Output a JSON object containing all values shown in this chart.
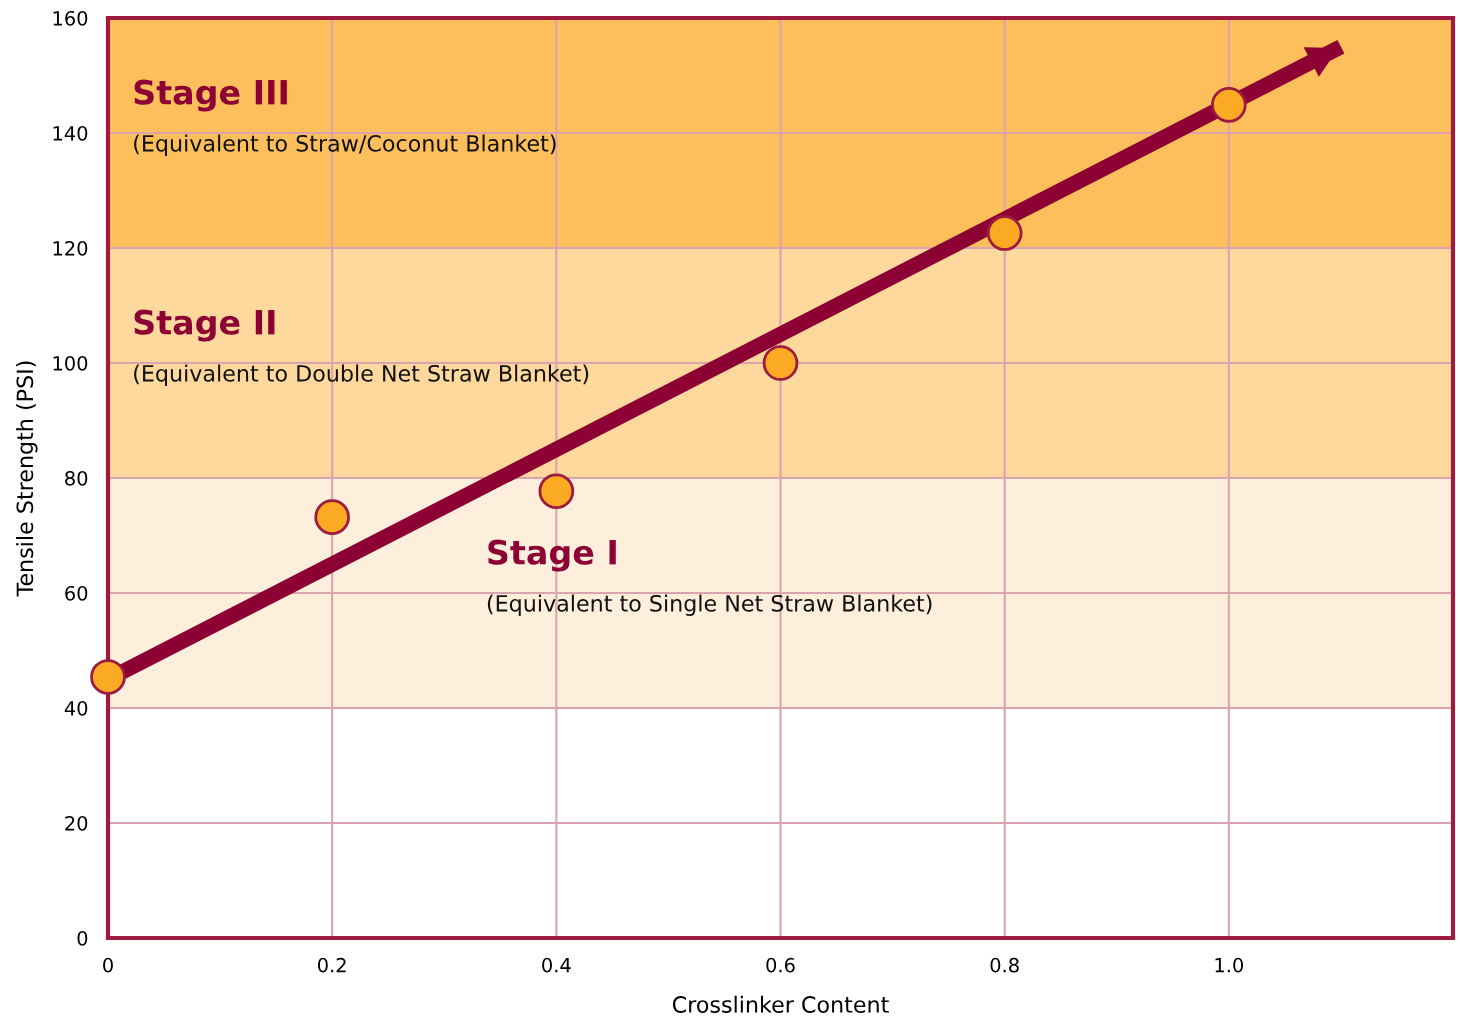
{
  "chart_data": {
    "type": "line",
    "xlabel": "Crosslinker Content",
    "ylabel": "Tensile Strength (PSI)",
    "xlim": [
      0,
      1.2
    ],
    "xticks": [
      0,
      0.2,
      0.4,
      0.6,
      0.8,
      {
        "value": 1.0,
        "label": "1.0"
      }
    ],
    "ylim": [
      0,
      160
    ],
    "yticks": [
      0,
      20,
      40,
      60,
      80,
      100,
      120,
      140,
      160
    ],
    "grid": true,
    "bands": [
      {
        "axis": "y",
        "from": 40,
        "to": 80,
        "label": "Stage I",
        "color": "#feefdc"
      },
      {
        "axis": "y",
        "from": 80,
        "to": 120,
        "label": "Stage II",
        "color": "#fed89c"
      },
      {
        "axis": "y",
        "from": 120,
        "to": 160,
        "label": "Stage III",
        "color": "#fdbf5b"
      }
    ],
    "annotations": [
      "(Equivalent to Single Net Straw Blanket)",
      "(Equivalent to Double Net Straw Blanket)",
      "(Equivalent to Straw/Coconut Blanket)"
    ],
    "series": [
      {
        "marker": "none",
        "color": "#8c0034",
        "x": [
          0,
          1.1
        ],
        "values": [
          45,
          155
        ]
      },
      {
        "type": "scatter",
        "marker": "circle",
        "color": "#fbaa24",
        "x": [
          0,
          0.2,
          0.4,
          0.6,
          0.8,
          1.0
        ],
        "values": [
          45.4,
          73.2,
          77.7,
          100,
          122.6,
          144.9
        ]
      }
    ]
  }
}
